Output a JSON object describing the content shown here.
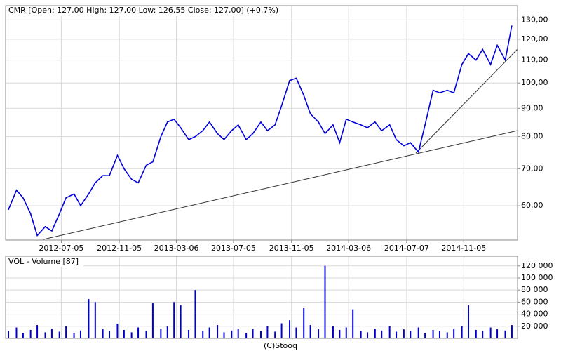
{
  "chart_data": [
    {
      "type": "line",
      "title": "CMR [Open: 127,00  High: 127,00  Low: 126,55  Close: 127,00] (+0,7%)",
      "x": [
        "2012-03-15",
        "2012-04-01",
        "2012-04-15",
        "2012-05-01",
        "2012-05-15",
        "2012-06-01",
        "2012-06-15",
        "2012-07-01",
        "2012-07-15",
        "2012-08-01",
        "2012-08-15",
        "2012-09-01",
        "2012-09-15",
        "2012-10-01",
        "2012-10-15",
        "2012-11-01",
        "2012-11-15",
        "2012-12-01",
        "2012-12-15",
        "2013-01-01",
        "2013-01-15",
        "2013-02-01",
        "2013-02-15",
        "2013-03-01",
        "2013-03-15",
        "2013-04-01",
        "2013-04-15",
        "2013-05-01",
        "2013-05-15",
        "2013-06-01",
        "2013-06-15",
        "2013-07-01",
        "2013-07-15",
        "2013-08-01",
        "2013-08-15",
        "2013-09-01",
        "2013-09-15",
        "2013-10-01",
        "2013-10-15",
        "2013-11-01",
        "2013-11-15",
        "2013-12-01",
        "2013-12-15",
        "2014-01-01",
        "2014-01-15",
        "2014-02-01",
        "2014-02-15",
        "2014-03-01",
        "2014-03-15",
        "2014-04-01",
        "2014-04-15",
        "2014-05-01",
        "2014-05-15",
        "2014-06-01",
        "2014-06-15",
        "2014-07-01",
        "2014-07-15",
        "2014-08-01",
        "2014-08-15",
        "2014-09-01",
        "2014-09-15",
        "2014-10-01",
        "2014-10-15",
        "2014-11-01",
        "2014-11-15",
        "2014-12-01",
        "2014-12-15",
        "2015-01-01",
        "2015-01-15",
        "2015-02-01",
        "2015-02-15"
      ],
      "values": [
        59,
        64,
        62,
        58,
        53,
        55,
        54,
        58,
        62,
        63,
        60,
        63,
        66,
        68,
        68,
        74,
        70,
        67,
        66,
        71,
        72,
        80,
        85,
        86,
        83,
        79,
        80,
        82,
        85,
        81,
        79,
        82,
        84,
        79,
        81,
        85,
        82,
        84,
        91,
        101,
        102,
        95,
        88,
        85,
        81,
        84,
        78,
        86,
        85,
        84,
        83,
        85,
        82,
        84,
        79,
        77,
        78,
        75,
        84,
        97,
        96,
        97,
        96,
        108,
        113,
        110,
        115,
        108,
        117,
        110,
        127
      ],
      "color": "#0000dd",
      "xlim": [
        "2012-03-09",
        "2015-02-27"
      ],
      "xticks": [
        "2012-07-05",
        "2012-11-05",
        "2013-03-06",
        "2013-07-05",
        "2013-11-05",
        "2014-03-06",
        "2014-07-07",
        "2014-11-05"
      ],
      "ylim": [
        52,
        138
      ],
      "yticks": [
        {
          "value": 60,
          "label": "60,00"
        },
        {
          "value": 70,
          "label": "70,00"
        },
        {
          "value": 80,
          "label": "80,00"
        },
        {
          "value": 90,
          "label": "90,00"
        },
        {
          "value": 100,
          "label": "100,00"
        },
        {
          "value": 110,
          "label": "110,00"
        },
        {
          "value": 120,
          "label": "120,00"
        },
        {
          "value": 130,
          "label": "130,00"
        }
      ],
      "log_scale": true,
      "grid": true
    },
    {
      "type": "bar",
      "title": "VOL - Volume [87]",
      "values": [
        12000,
        18000,
        9000,
        14000,
        22000,
        10000,
        16000,
        11000,
        20000,
        9000,
        13000,
        65000,
        60000,
        15000,
        12000,
        24000,
        14000,
        10000,
        18000,
        12000,
        58000,
        16000,
        20000,
        60000,
        55000,
        14000,
        80000,
        12000,
        18000,
        22000,
        10000,
        13000,
        16000,
        9000,
        15000,
        12000,
        20000,
        11000,
        25000,
        30000,
        18000,
        50000,
        22000,
        15000,
        120000,
        20000,
        14000,
        18000,
        48000,
        12000,
        10000,
        16000,
        13000,
        20000,
        11000,
        15000,
        12000,
        18000,
        9000,
        14000,
        12000,
        10000,
        16000,
        20000,
        55000,
        14000,
        12000,
        18000,
        15000,
        13000,
        22000
      ],
      "color": "#0000cc",
      "ylim": [
        0,
        136000
      ],
      "yticks": [
        {
          "value": 20000,
          "label": "20 000"
        },
        {
          "value": 40000,
          "label": "40 000"
        },
        {
          "value": 60000,
          "label": "60 000"
        },
        {
          "value": 80000,
          "label": "80 000"
        },
        {
          "value": 100000,
          "label": "100 000"
        },
        {
          "value": 120000,
          "label": "120 000"
        }
      ],
      "grid": true
    }
  ],
  "footer": "(C)Stooq"
}
